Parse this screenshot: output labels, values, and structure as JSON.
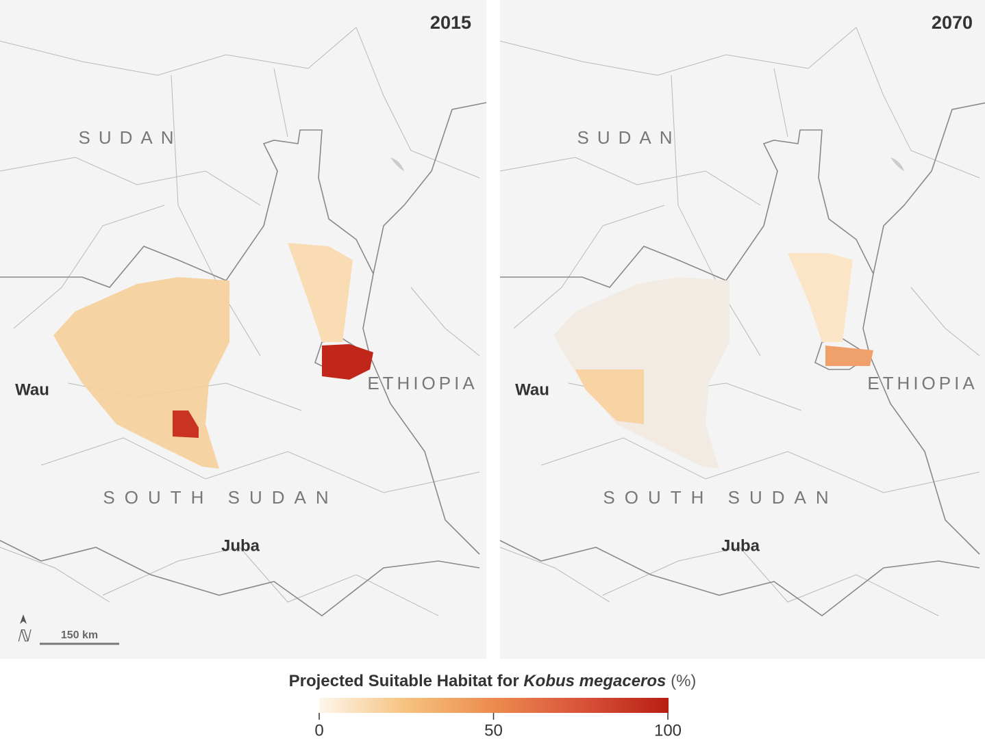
{
  "panels": [
    {
      "year": "2015",
      "labels": {
        "country_north": "SUDAN",
        "city_west": "Wau",
        "country_east": "ETHIOPIA",
        "country_south": "SOUTH SUDAN",
        "city_south": "Juba"
      }
    },
    {
      "year": "2070",
      "labels": {
        "country_north": "SUDAN",
        "city_west": "Wau",
        "country_east": "ETHIOPIA",
        "country_south": "SOUTH SUDAN",
        "city_south": "Juba"
      }
    }
  ],
  "scale_bar": "150 km",
  "legend": {
    "title_prefix": "Projected Suitable Habitat for",
    "title_species": "Kobus megaceros",
    "title_unit": "(%)",
    "range": [
      0,
      100
    ],
    "ticks": [
      0,
      50,
      100
    ],
    "colors": [
      "#fdf6ec",
      "#f6c27e",
      "#ec8b4e",
      "#d9533a",
      "#b81e14"
    ]
  }
}
